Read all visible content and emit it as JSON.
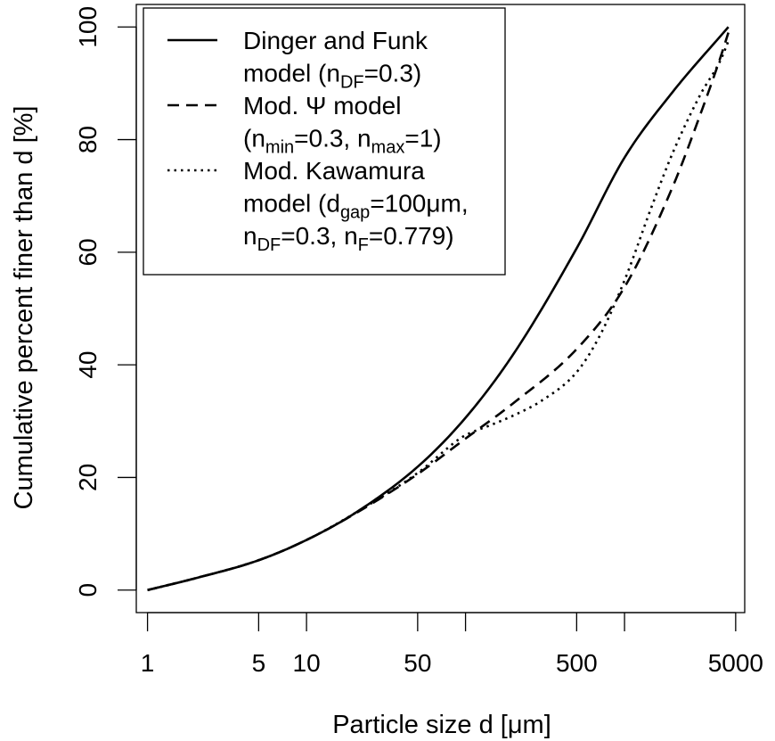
{
  "chart_data": {
    "type": "line",
    "xlabel": "Particle size d [μm]",
    "ylabel": "Cumulative percent finer than d [%]",
    "x_scale": "log",
    "xlim": [
      0.85,
      5700
    ],
    "ylim": [
      -4,
      104
    ],
    "x_ticks": [
      {
        "value": 1,
        "label": "1"
      },
      {
        "value": 5,
        "label": "5"
      },
      {
        "value": 10,
        "label": "10"
      },
      {
        "value": 50,
        "label": "50"
      },
      {
        "value": 100,
        "label": ""
      },
      {
        "value": 500,
        "label": "500"
      },
      {
        "value": 1000,
        "label": ""
      },
      {
        "value": 5000,
        "label": "5000"
      }
    ],
    "y_ticks": [
      {
        "value": 0,
        "label": "0"
      },
      {
        "value": 20,
        "label": "20"
      },
      {
        "value": 40,
        "label": "40"
      },
      {
        "value": 60,
        "label": "60"
      },
      {
        "value": 80,
        "label": "80"
      },
      {
        "value": 100,
        "label": "100"
      }
    ],
    "grid": false,
    "legend": {
      "position": "top-left",
      "entries": [
        {
          "style": "solid",
          "lines": [
            [
              {
                "t": "Dinger and Funk"
              }
            ],
            [
              {
                "t": "model (n"
              },
              {
                "t": "DF",
                "sub": true
              },
              {
                "t": "=0.3)"
              }
            ]
          ]
        },
        {
          "style": "dashed",
          "lines": [
            [
              {
                "t": "Mod. Ψ model"
              }
            ],
            [
              {
                "t": "(n"
              },
              {
                "t": "min",
                "sub": true
              },
              {
                "t": "=0.3, n"
              },
              {
                "t": "max",
                "sub": true
              },
              {
                "t": "=1)"
              }
            ]
          ]
        },
        {
          "style": "dotted",
          "lines": [
            [
              {
                "t": "Mod. Kawamura"
              }
            ],
            [
              {
                "t": "model (d"
              },
              {
                "t": "gap",
                "sub": true
              },
              {
                "t": "=100μm,"
              }
            ],
            [
              {
                "t": "n"
              },
              {
                "t": "DF",
                "sub": true
              },
              {
                "t": "=0.3, n"
              },
              {
                "t": "F",
                "sub": true
              },
              {
                "t": "=0.779)"
              }
            ]
          ]
        }
      ]
    },
    "series": [
      {
        "style": "solid",
        "x": [
          1,
          2,
          5,
          10,
          20,
          50,
          100,
          200,
          500,
          1000,
          2000,
          4500
        ],
        "y": [
          0,
          2.1,
          5.3,
          8.9,
          13.6,
          21.9,
          30.6,
          41.9,
          60.7,
          76.8,
          88.4,
          100
        ]
      },
      {
        "style": "dashed",
        "x": [
          1,
          2,
          5,
          10,
          20,
          50,
          100,
          200,
          500,
          1000,
          2000,
          3000,
          4000,
          4500
        ],
        "y": [
          0,
          2.1,
          5.3,
          8.9,
          13.5,
          20.6,
          26.9,
          33.2,
          42.8,
          53.8,
          71.5,
          84.5,
          94.5,
          99
        ]
      },
      {
        "style": "dotted",
        "x": [
          1,
          2,
          5,
          10,
          20,
          50,
          90,
          100,
          150,
          200,
          300,
          500,
          700,
          1000,
          1500,
          2000,
          3000,
          4000,
          4500
        ],
        "y": [
          0,
          2.1,
          5.3,
          8.9,
          13.6,
          20.8,
          26.7,
          27.5,
          29.5,
          31.0,
          33.6,
          38.7,
          45.2,
          55.0,
          68.5,
          77.5,
          88.0,
          94.0,
          97.5
        ]
      }
    ]
  }
}
